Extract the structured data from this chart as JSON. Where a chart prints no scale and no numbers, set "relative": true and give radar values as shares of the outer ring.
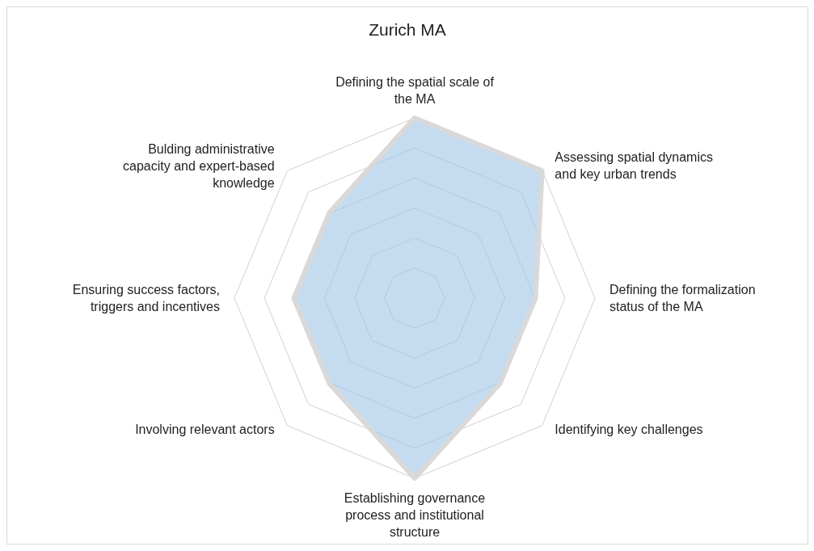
{
  "chart_data": {
    "type": "radar",
    "title": "Zurich MA",
    "relative": true,
    "grid": true,
    "legend": false,
    "categories": [
      "Defining the spatial scale of the MA",
      "Assessing spatial dynamics and key urban trends",
      "Defining the formalization status of the MA",
      "Identifying key challenges",
      "Establishing governance process and institutional structure",
      "Involving relevant actors",
      "Ensuring success factors, triggers and incentives",
      "Bulding administrative capacity and expert-based knowledge"
    ],
    "series": [
      {
        "color": "#d9d9d9",
        "values": [
          1,
          1,
          0.67,
          0.67,
          1,
          0.67,
          0.67,
          0.67
        ]
      }
    ]
  }
}
